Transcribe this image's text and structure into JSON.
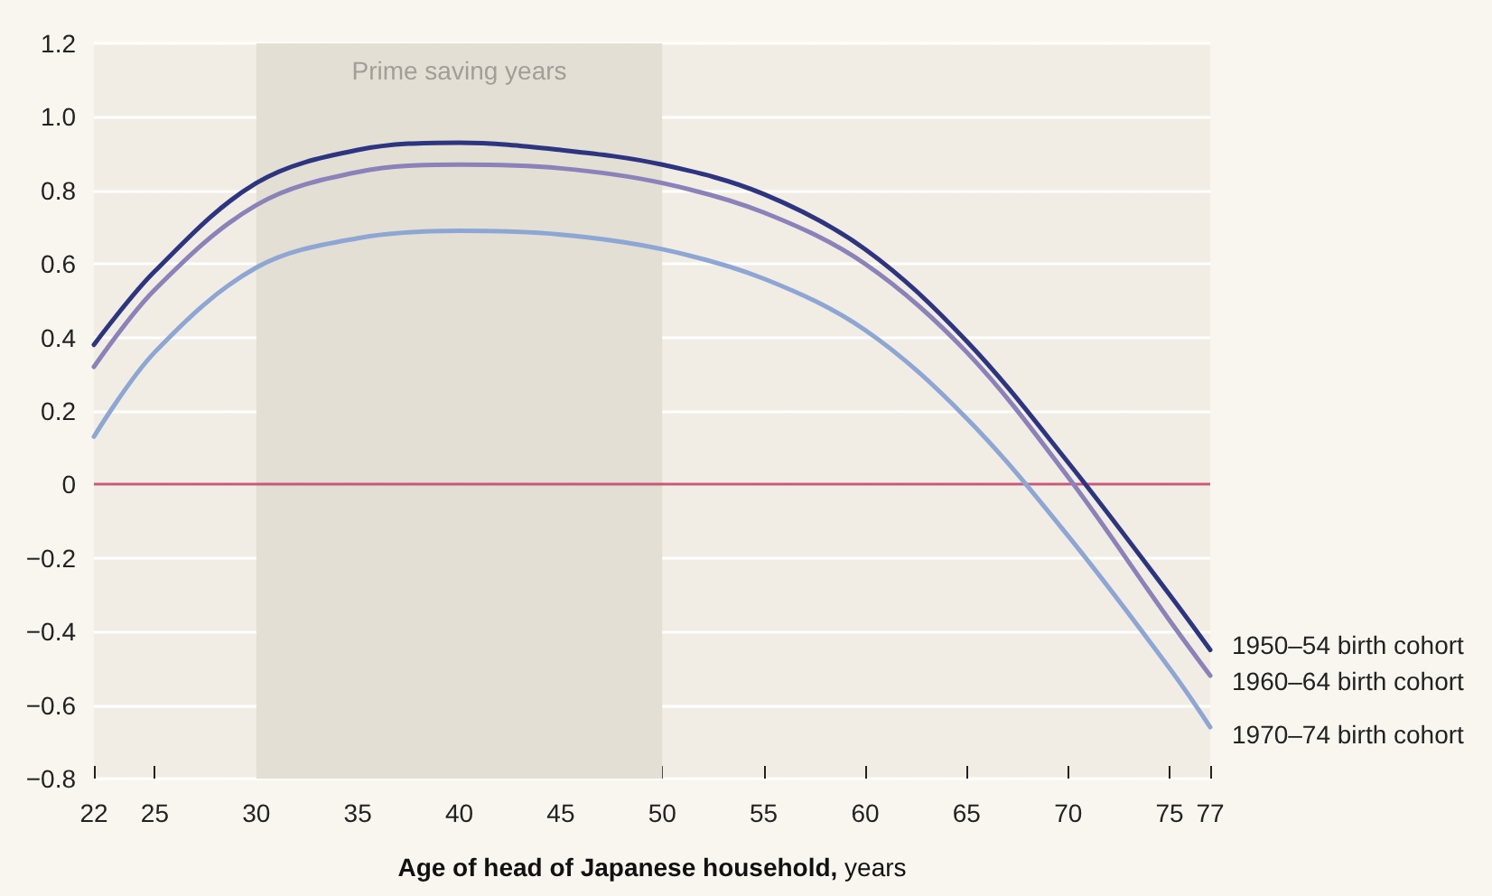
{
  "chart_data": {
    "type": "line",
    "xlabel": "Age of head of Japanese household, years",
    "xlim": [
      22,
      77
    ],
    "xticks": [
      22,
      25,
      30,
      35,
      40,
      45,
      50,
      55,
      60,
      65,
      70,
      75,
      77
    ],
    "ylim": [
      -0.8,
      1.2
    ],
    "yticks": [
      {
        "value": -0.8,
        "label": "−0.8"
      },
      {
        "value": -0.6,
        "label": "−0.6"
      },
      {
        "value": -0.4,
        "label": "−0.4"
      },
      {
        "value": -0.2,
        "label": "−0.2"
      },
      0,
      0.2,
      0.4,
      0.6,
      0.8,
      {
        "value": 1,
        "label": "1.0"
      },
      1.2
    ],
    "grid": "y",
    "legend": false,
    "marker": "none",
    "line_style": "solid",
    "x": [
      22,
      25,
      30,
      35,
      40,
      45,
      50,
      55,
      60,
      65,
      70,
      75,
      77
    ],
    "series": [
      {
        "name": "1950–54 birth cohort",
        "color": "#2e3580",
        "values": [
          0.38,
          0.58,
          0.82,
          0.91,
          0.93,
          0.91,
          0.87,
          0.79,
          0.64,
          0.39,
          0.06,
          -0.3,
          -0.45
        ]
      },
      {
        "name": "1960–64 birth cohort",
        "color": "#8a82b8",
        "values": [
          0.32,
          0.53,
          0.76,
          0.85,
          0.87,
          0.86,
          0.82,
          0.74,
          0.6,
          0.36,
          0.02,
          -0.37,
          -0.52
        ]
      },
      {
        "name": "1970–74 birth cohort",
        "color": "#8ea6d4",
        "values": [
          0.13,
          0.36,
          0.59,
          0.67,
          0.69,
          0.68,
          0.64,
          0.56,
          0.42,
          0.18,
          -0.14,
          -0.5,
          -0.66
        ]
      }
    ],
    "ref_lines": [
      {
        "axis": "y",
        "value": 0,
        "color": "#c85a78"
      }
    ],
    "bands": [
      {
        "axis": "x",
        "from": 30,
        "to": 50,
        "label": "Prime saving years",
        "color": "#e3dfd4"
      }
    ]
  }
}
